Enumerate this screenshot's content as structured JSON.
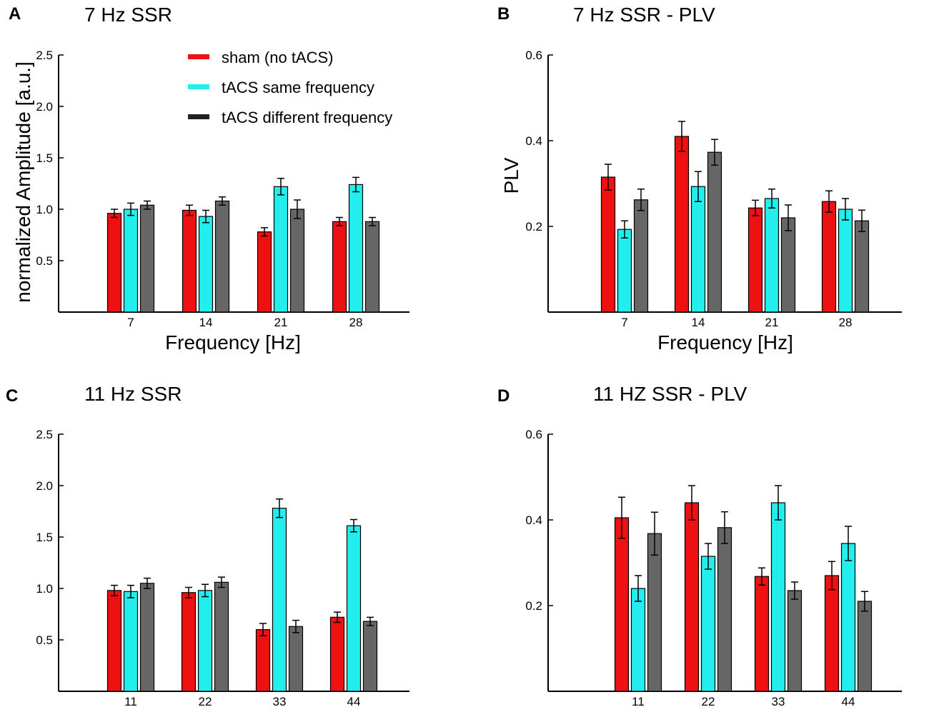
{
  "colors": {
    "sham": "#ee1111",
    "same": "#22eeee",
    "different": "#666666",
    "legend_different": "#222222"
  },
  "legend": {
    "entries": [
      {
        "key": "sham",
        "label": "sham (no tACS)"
      },
      {
        "key": "same",
        "label": "tACS same frequency"
      },
      {
        "key": "different",
        "label": "tACS different frequency"
      }
    ]
  },
  "chart_data": [
    {
      "type": "bar",
      "panel": "A",
      "title": "7 Hz SSR",
      "xlabel": "Frequency [Hz]",
      "ylabel": "normalized Amplitude [a.u.]",
      "ylim": [
        0,
        2.5
      ],
      "yticks": [
        0.5,
        1.0,
        1.5,
        2.0,
        2.5
      ],
      "ytick_labels": [
        "0.5",
        "1.0",
        "1.5",
        "2.0",
        "2.5"
      ],
      "categories": [
        "7",
        "14",
        "21",
        "28"
      ],
      "series": [
        {
          "name": "sham (no tACS)",
          "key": "sham",
          "values": [
            0.96,
            0.99,
            0.78,
            0.88
          ],
          "errors": [
            0.04,
            0.05,
            0.04,
            0.04
          ]
        },
        {
          "name": "tACS same frequency",
          "key": "same",
          "values": [
            1.0,
            0.93,
            1.22,
            1.24
          ],
          "errors": [
            0.06,
            0.06,
            0.08,
            0.07
          ]
        },
        {
          "name": "tACS different frequency",
          "key": "different",
          "values": [
            1.04,
            1.08,
            1.0,
            0.88
          ],
          "errors": [
            0.04,
            0.04,
            0.09,
            0.04
          ]
        }
      ]
    },
    {
      "type": "bar",
      "panel": "B",
      "title": "7 Hz SSR - PLV",
      "xlabel": "Frequency [Hz]",
      "ylabel": "PLV",
      "ylim": [
        0,
        0.6
      ],
      "yticks": [
        0.2,
        0.4,
        0.6
      ],
      "ytick_labels": [
        "0.2",
        "0.4",
        "0.6"
      ],
      "categories": [
        "7",
        "14",
        "21",
        "28"
      ],
      "series": [
        {
          "name": "sham (no tACS)",
          "key": "sham",
          "values": [
            0.315,
            0.41,
            0.243,
            0.258
          ],
          "errors": [
            0.03,
            0.035,
            0.018,
            0.025
          ]
        },
        {
          "name": "tACS same frequency",
          "key": "same",
          "values": [
            0.193,
            0.293,
            0.265,
            0.24
          ],
          "errors": [
            0.02,
            0.035,
            0.022,
            0.025
          ]
        },
        {
          "name": "tACS different frequency",
          "key": "different",
          "values": [
            0.262,
            0.373,
            0.22,
            0.213
          ],
          "errors": [
            0.025,
            0.03,
            0.03,
            0.025
          ]
        }
      ]
    },
    {
      "type": "bar",
      "panel": "C",
      "title": "11 Hz SSR",
      "xlabel": "",
      "ylabel": "",
      "ylim": [
        0,
        2.5
      ],
      "yticks": [
        0.5,
        1.0,
        1.5,
        2.0,
        2.5
      ],
      "ytick_labels": [
        "0.5",
        "1.0",
        "1.5",
        "2.0",
        "2.5"
      ],
      "categories": [
        "11",
        "22",
        "33",
        "44"
      ],
      "series": [
        {
          "name": "sham (no tACS)",
          "key": "sham",
          "values": [
            0.98,
            0.96,
            0.6,
            0.72
          ],
          "errors": [
            0.05,
            0.05,
            0.06,
            0.05
          ]
        },
        {
          "name": "tACS same frequency",
          "key": "same",
          "values": [
            0.97,
            0.98,
            1.78,
            1.61
          ],
          "errors": [
            0.06,
            0.06,
            0.09,
            0.06
          ]
        },
        {
          "name": "tACS different frequency",
          "key": "different",
          "values": [
            1.05,
            1.06,
            0.63,
            0.68
          ],
          "errors": [
            0.05,
            0.05,
            0.06,
            0.04
          ]
        }
      ]
    },
    {
      "type": "bar",
      "panel": "D",
      "title": "11 HZ SSR - PLV",
      "xlabel": "",
      "ylabel": "",
      "ylim": [
        0,
        0.6
      ],
      "yticks": [
        0.2,
        0.4,
        0.6
      ],
      "ytick_labels": [
        "0.2",
        "0.4",
        "0.6"
      ],
      "categories": [
        "11",
        "22",
        "33",
        "44"
      ],
      "series": [
        {
          "name": "sham (no tACS)",
          "key": "sham",
          "values": [
            0.405,
            0.44,
            0.268,
            0.27
          ],
          "errors": [
            0.048,
            0.04,
            0.02,
            0.033
          ]
        },
        {
          "name": "tACS same frequency",
          "key": "same",
          "values": [
            0.24,
            0.315,
            0.44,
            0.345
          ],
          "errors": [
            0.03,
            0.03,
            0.04,
            0.04
          ]
        },
        {
          "name": "tACS different frequency",
          "key": "different",
          "values": [
            0.368,
            0.382,
            0.235,
            0.21
          ],
          "errors": [
            0.05,
            0.037,
            0.02,
            0.023
          ]
        }
      ]
    }
  ]
}
